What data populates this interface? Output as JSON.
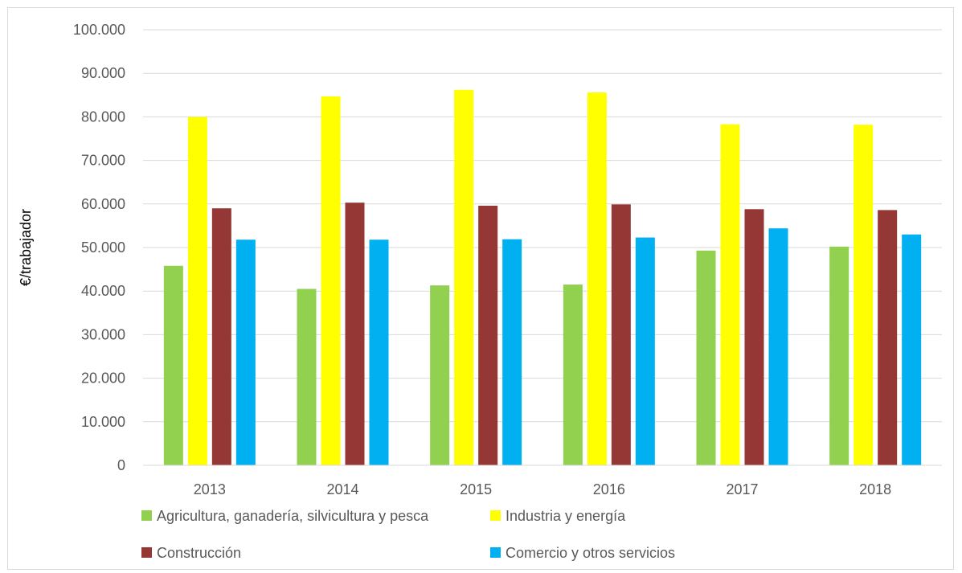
{
  "chart_data": {
    "type": "bar",
    "title": "",
    "xlabel": "",
    "ylabel": "€/trabajador",
    "ylim": [
      0,
      100000
    ],
    "y_ticks": [
      0,
      10000,
      20000,
      30000,
      40000,
      50000,
      60000,
      70000,
      80000,
      90000,
      100000
    ],
    "y_tick_labels": [
      "0",
      "10.000",
      "20.000",
      "30.000",
      "40.000",
      "50.000",
      "60.000",
      "70.000",
      "80.000",
      "90.000",
      "100.000"
    ],
    "grid": true,
    "legend_position": "bottom",
    "categories": [
      "2013",
      "2014",
      "2015",
      "2016",
      "2017",
      "2018"
    ],
    "series": [
      {
        "name": "Agricultura, ganadería, silvicultura y pesca",
        "color": "#92d050",
        "values": [
          45800,
          40500,
          41300,
          41500,
          49300,
          50200
        ]
      },
      {
        "name": "Industria y energía",
        "color": "#ffff00",
        "values": [
          80000,
          84700,
          86200,
          85600,
          78300,
          78200
        ]
      },
      {
        "name": "Construcción",
        "color": "#953735",
        "values": [
          59000,
          60300,
          59600,
          59900,
          58800,
          58600
        ]
      },
      {
        "name": "Comercio y otros servicios",
        "color": "#00b0f0",
        "values": [
          51800,
          51800,
          51900,
          52300,
          54400,
          53000
        ]
      }
    ]
  }
}
